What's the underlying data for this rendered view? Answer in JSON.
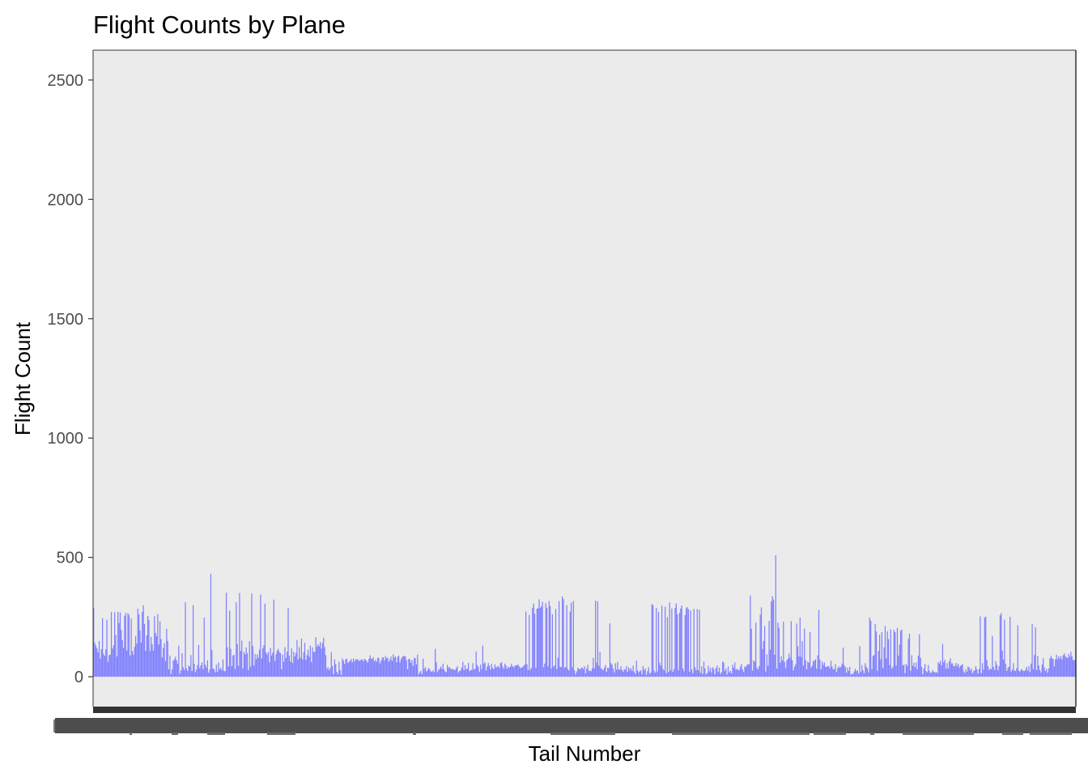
{
  "chart_data": {
    "type": "bar",
    "title": "Flight Counts by Plane",
    "xlabel": "Tail Number",
    "ylabel": "Flight Count",
    "ylim": [
      -125,
      2625
    ],
    "yticks": [
      0,
      500,
      1000,
      1500,
      2000,
      2500
    ],
    "ytick_labels": [
      "0",
      "500",
      "1000",
      "1500",
      "2000",
      "2500"
    ],
    "grid": false,
    "legend": "none",
    "bar_color": "#7f7fff",
    "panel_color": "#ebebeb",
    "x_tick_labels_overplotted": true,
    "values": [
      288,
      142,
      131,
      120,
      102,
      150,
      76,
      116,
      245,
      96,
      87,
      115,
      239,
      63,
      90,
      93,
      271,
      118,
      131,
      270,
      175,
      85,
      272,
      225,
      269,
      196,
      154,
      121,
      255,
      267,
      110,
      266,
      259,
      89,
      245,
      108,
      93,
      125,
      170,
      139,
      285,
      262,
      194,
      143,
      272,
      300,
      221,
      109,
      173,
      255,
      238,
      108,
      167,
      136,
      110,
      254,
      183,
      170,
      262,
      135,
      232,
      158,
      81,
      120,
      141,
      66,
      201,
      150,
      31,
      89,
      11,
      31,
      67,
      73,
      84,
      69,
      55,
      130,
      13,
      27,
      99,
      40,
      28,
      312,
      35,
      24,
      47,
      43,
      91,
      24,
      300,
      55,
      19,
      31,
      49,
      133,
      36,
      48,
      61,
      31,
      248,
      51,
      39,
      69,
      17,
      30,
      431,
      112,
      35,
      31,
      19,
      51,
      21,
      60,
      31,
      38,
      28,
      72,
      25,
      23,
      352,
      124,
      43,
      277,
      117,
      44,
      89,
      92,
      33,
      312,
      136,
      45,
      351,
      108,
      152,
      35,
      105,
      94,
      123,
      99,
      29,
      149,
      43,
      349,
      128,
      47,
      95,
      74,
      94,
      80,
      113,
      344,
      77,
      119,
      132,
      306,
      102,
      92,
      103,
      61,
      121,
      89,
      101,
      323,
      66,
      94,
      110,
      117,
      104,
      99,
      31,
      93,
      63,
      124,
      79,
      105,
      288,
      89,
      64,
      119,
      58,
      105,
      85,
      100,
      154,
      73,
      124,
      80,
      160,
      73,
      103,
      142,
      71,
      91,
      113,
      84,
      131,
      62,
      123,
      104,
      105,
      166,
      126,
      135,
      128,
      145,
      118,
      142,
      163,
      124,
      91,
      33,
      41,
      27,
      36,
      103,
      45,
      11,
      72,
      53,
      21,
      12,
      63,
      28,
      8,
      77,
      68,
      53,
      74,
      76,
      58,
      62,
      68,
      74,
      61,
      76,
      64,
      73,
      72,
      74,
      66,
      69,
      72,
      73,
      65,
      75,
      71,
      66,
      59,
      75,
      90,
      77,
      75,
      82,
      65,
      71,
      63,
      80,
      79,
      56,
      67,
      80,
      82,
      68,
      87,
      77,
      80,
      63,
      72,
      84,
      66,
      94,
      80,
      85,
      61,
      83,
      89,
      60,
      73,
      82,
      87,
      87,
      85,
      70,
      31,
      75,
      73,
      58,
      70,
      45,
      79,
      77,
      52,
      93,
      10,
      19,
      25,
      12,
      76,
      33,
      40,
      22,
      29,
      37,
      32,
      23,
      21,
      27,
      19,
      117,
      61,
      20,
      28,
      34,
      43,
      34,
      55,
      31,
      22,
      19,
      50,
      38,
      41,
      32,
      33,
      32,
      29,
      28,
      36,
      44,
      18,
      24,
      27,
      38,
      63,
      28,
      49,
      31,
      35,
      58,
      24,
      27,
      29,
      57,
      30,
      34,
      105,
      49,
      42,
      21,
      51,
      32,
      130,
      55,
      60,
      26,
      43,
      58,
      47,
      31,
      54,
      37,
      32,
      52,
      39,
      42,
      45,
      37,
      57,
      61,
      43,
      34,
      55,
      47,
      33,
      42,
      38,
      43,
      54,
      44,
      39,
      46,
      48,
      49,
      51,
      43,
      37,
      39,
      40,
      46,
      51,
      273,
      53,
      28,
      259,
      29,
      37,
      289,
      307,
      264,
      38,
      285,
      287,
      324,
      289,
      295,
      314,
      40,
      55,
      308,
      289,
      44,
      317,
      296,
      35,
      262,
      42,
      48,
      284,
      33,
      80,
      317,
      42,
      40,
      337,
      325,
      37,
      41,
      300,
      33,
      26,
      273,
      311,
      40,
      318,
      27,
      11,
      22,
      38,
      33,
      31,
      37,
      39,
      32,
      44,
      15,
      35,
      50,
      25,
      26,
      23,
      35,
      79,
      36,
      319,
      59,
      316,
      46,
      105,
      36,
      31,
      28,
      38,
      49,
      21,
      38,
      36,
      224,
      57,
      51,
      34,
      18,
      57,
      30,
      62,
      29,
      31,
      44,
      28,
      21,
      33,
      29,
      45,
      21,
      40,
      30,
      36,
      24,
      47,
      22,
      12,
      67,
      27,
      18,
      23,
      27,
      11,
      45,
      28,
      35,
      8,
      23,
      40,
      13,
      17,
      305,
      300,
      26,
      17,
      288,
      22,
      272,
      59,
      47,
      298,
      33,
      27,
      293,
      15,
      250,
      20,
      311,
      26,
      286,
      21,
      32,
      289,
      307,
      261,
      27,
      268,
      286,
      299,
      35,
      23,
      258,
      287,
      292,
      283,
      21,
      278,
      31,
      15,
      284,
      40,
      28,
      284,
      27,
      281,
      16,
      44,
      12,
      63,
      35,
      10,
      15,
      46,
      23,
      38,
      18,
      40,
      33,
      11,
      36,
      47,
      20,
      38,
      12,
      19,
      64,
      59,
      25,
      35,
      10,
      43,
      18,
      25,
      14,
      50,
      38,
      60,
      30,
      33,
      28,
      28,
      42,
      54,
      31,
      20,
      43,
      41,
      49,
      54,
      52,
      340,
      201,
      26,
      69,
      63,
      227,
      37,
      30,
      44,
      260,
      291,
      116,
      150,
      213,
      22,
      94,
      46,
      234,
      113,
      316,
      338,
      324,
      92,
      509,
      34,
      227,
      205,
      59,
      86,
      68,
      231,
      62,
      36,
      69,
      75,
      97,
      80,
      233,
      69,
      27,
      42,
      52,
      223,
      128,
      85,
      248,
      83,
      149,
      47,
      202,
      70,
      31,
      63,
      59,
      188,
      39,
      46,
      66,
      67,
      73,
      34,
      90,
      280,
      72,
      31,
      63,
      50,
      60,
      42,
      42,
      43,
      45,
      36,
      67,
      44,
      32,
      32,
      53,
      20,
      36,
      44,
      38,
      42,
      55,
      122,
      49,
      41,
      17,
      38,
      24,
      42,
      9,
      13,
      12,
      23,
      33,
      23,
      27,
      13,
      129,
      20,
      49,
      27,
      15,
      57,
      42,
      34,
      19,
      248,
      235,
      32,
      86,
      91,
      221,
      190,
      25,
      108,
      176,
      73,
      187,
      36,
      123,
      213,
      77,
      190,
      158,
      49,
      198,
      34,
      42,
      196,
      187,
      47,
      205,
      89,
      135,
      193,
      198,
      47,
      51,
      15,
      54,
      45,
      159,
      180,
      25,
      90,
      46,
      59,
      40,
      60,
      31,
      89,
      178,
      80,
      42,
      10,
      35,
      54,
      24,
      19,
      49,
      25,
      16,
      18,
      28,
      21,
      17,
      20,
      16,
      61,
      55,
      67,
      48,
      137,
      61,
      71,
      34,
      57,
      35,
      65,
      77,
      56,
      56,
      45,
      44,
      58,
      46,
      55,
      38,
      46,
      48,
      54,
      23,
      17,
      32,
      21,
      44,
      38,
      27,
      35,
      15,
      24,
      27,
      44,
      31,
      14,
      33,
      253,
      15,
      57,
      30,
      249,
      252,
      71,
      45,
      28,
      36,
      31,
      171,
      41,
      28,
      66,
      50,
      27,
      45,
      258,
      267,
      110,
      72,
      239,
      54,
      25,
      37,
      42,
      251,
      21,
      30,
      57,
      26,
      24,
      36,
      216,
      25,
      21,
      31,
      30,
      24,
      24,
      30,
      42,
      25,
      44,
      20,
      55,
      222,
      32,
      91,
      208,
      28,
      86,
      47,
      28,
      18,
      52,
      77,
      39,
      24,
      33,
      17,
      35,
      77,
      87,
      78,
      74,
      44,
      73,
      92,
      73,
      85,
      76,
      87,
      72,
      90,
      98,
      87,
      81,
      79,
      95,
      84,
      104,
      86,
      71,
      68,
      74
    ]
  }
}
